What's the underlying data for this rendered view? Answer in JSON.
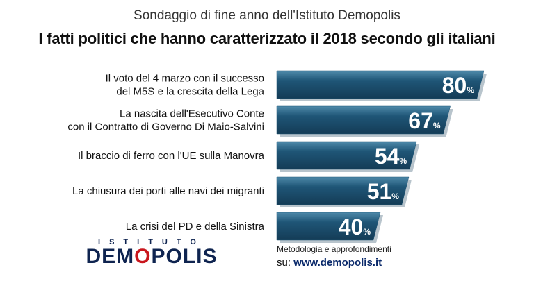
{
  "header": {
    "supertitle": "Sondaggio di fine anno dell'Istituto Demopolis",
    "title": "I fatti politici che hanno caratterizzato il 2018 secondo gli italiani"
  },
  "chart_data": {
    "type": "bar",
    "orientation": "horizontal",
    "categories": [
      [
        "Il voto del 4 marzo con il successo",
        "del M5S e la crescita della Lega"
      ],
      [
        "La nascita dell'Esecutivo Conte",
        "con il Contratto di Governo Di Maio-Salvini"
      ],
      [
        "Il braccio di ferro con l'UE sulla Manovra"
      ],
      [
        "La chiusura dei porti alle navi dei migranti"
      ],
      [
        "La crisi del PD e della Sinistra"
      ]
    ],
    "values": [
      80,
      67,
      54,
      51,
      40
    ],
    "value_suffix": "%",
    "bar_color": "#1f5677",
    "xlim": [
      0,
      80
    ]
  },
  "footer": {
    "logo_top": "ISTITUTO",
    "logo_main_1": "DEM",
    "logo_main_o": "O",
    "logo_main_2": "POLIS",
    "methodology": "Metodologia e approfondimenti",
    "url_prefix": "su:",
    "url": "www.demopolis.it"
  }
}
